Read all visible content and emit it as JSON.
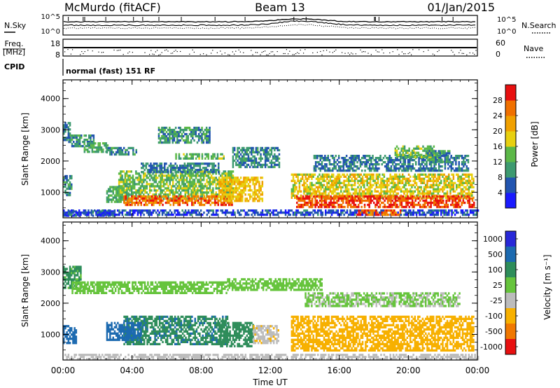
{
  "header": {
    "station": "McMurdo (fitACF)",
    "beam": "Beam 13",
    "date": "01/Jan/2015"
  },
  "top_panel": {
    "left_label": "N.Sky",
    "right_label": "N.Search",
    "left_ticks": [
      "10^5",
      "10^0"
    ],
    "right_ticks": [
      "10^5",
      "10^0"
    ]
  },
  "freq_panel": {
    "left_label_line1": "Freq.",
    "left_label_line2": "[MHz]",
    "left_ticks": [
      "18",
      "8"
    ],
    "right_ticks": [
      "60",
      "0"
    ],
    "right_label": "Nave"
  },
  "cpid": {
    "label": "CPID",
    "value": "normal (fast) 151 RF"
  },
  "colors": {
    "frame": "#000000",
    "power_scale": [
      "#1a1aff",
      "#2255b0",
      "#3d9a70",
      "#5cb848",
      "#e8d010",
      "#f0a000",
      "#f07000",
      "#e81010"
    ],
    "velocity_scale": [
      "#2828d8",
      "#1c6ab0",
      "#2e8d5a",
      "#66c43c",
      "#bcbcbc",
      "#f7b000",
      "#f07800",
      "#e81010"
    ]
  },
  "chart_data": [
    {
      "type": "heatmap",
      "name": "power",
      "ylabel": "Slant Range [km]",
      "xlabel": "",
      "x_ticks": [
        "00:00",
        "04:00",
        "08:00",
        "12:00",
        "16:00",
        "20:00",
        "00:00"
      ],
      "y_ticks": [
        "1000",
        "2000",
        "3000",
        "4000"
      ],
      "ylim": [
        180,
        4600
      ],
      "xlim_hours": [
        0,
        24
      ],
      "colorbar": {
        "title": "Power [dB]",
        "tick_labels": [
          "4",
          "8",
          "12",
          "16",
          "20",
          "24",
          "28"
        ],
        "range": [
          0,
          32
        ]
      },
      "regions": [
        {
          "t0": 0.0,
          "t1": 0.4,
          "r0": 2700,
          "r1": 3250,
          "value": 8
        },
        {
          "t0": 0.3,
          "t1": 1.8,
          "r0": 2450,
          "r1": 2850,
          "value": 10
        },
        {
          "t0": 1.2,
          "t1": 2.6,
          "r0": 2300,
          "r1": 2600,
          "value": 12
        },
        {
          "t0": 2.5,
          "t1": 4.2,
          "r0": 2200,
          "r1": 2450,
          "value": 9
        },
        {
          "t0": 0.0,
          "t1": 0.5,
          "r0": 900,
          "r1": 1550,
          "value": 9
        },
        {
          "t0": 0.0,
          "t1": 3.0,
          "r0": 250,
          "r1": 420,
          "value": 6
        },
        {
          "t0": 2.5,
          "t1": 4.0,
          "r0": 700,
          "r1": 1200,
          "value": 12
        },
        {
          "t0": 3.2,
          "t1": 9.8,
          "r0": 800,
          "r1": 1700,
          "value": 14
        },
        {
          "t0": 3.5,
          "t1": 9.8,
          "r0": 600,
          "r1": 900,
          "value": 26
        },
        {
          "t0": 4.5,
          "t1": 9.0,
          "r0": 1650,
          "r1": 1950,
          "value": 8
        },
        {
          "t0": 6.5,
          "t1": 9.3,
          "r0": 2050,
          "r1": 2250,
          "value": 13
        },
        {
          "t0": 5.5,
          "t1": 8.5,
          "r0": 2600,
          "r1": 3100,
          "value": 10
        },
        {
          "t0": 9.8,
          "t1": 12.5,
          "r0": 1800,
          "r1": 2450,
          "value": 9
        },
        {
          "t0": 9.0,
          "t1": 11.5,
          "r0": 700,
          "r1": 1500,
          "value": 20
        },
        {
          "t0": 0.0,
          "t1": 24.0,
          "r0": 250,
          "r1": 450,
          "value": 5
        },
        {
          "t0": 13.2,
          "t1": 23.8,
          "r0": 800,
          "r1": 1600,
          "value": 18
        },
        {
          "t0": 13.5,
          "t1": 23.8,
          "r0": 550,
          "r1": 900,
          "value": 28
        },
        {
          "t0": 17.0,
          "t1": 19.5,
          "r0": 300,
          "r1": 450,
          "value": 27
        },
        {
          "t0": 14.5,
          "t1": 23.5,
          "r0": 1700,
          "r1": 2200,
          "value": 8
        },
        {
          "t0": 19.2,
          "t1": 21.5,
          "r0": 2100,
          "r1": 2500,
          "value": 14
        },
        {
          "t0": 21.0,
          "t1": 22.5,
          "r0": 2000,
          "r1": 2350,
          "value": 10
        }
      ]
    },
    {
      "type": "heatmap",
      "name": "velocity",
      "ylabel": "Slant Range [km]",
      "xlabel": "Time UT",
      "x_ticks": [
        "00:00",
        "04:00",
        "08:00",
        "12:00",
        "16:00",
        "20:00",
        "00:00"
      ],
      "y_ticks": [
        "1000",
        "2000",
        "3000",
        "4000"
      ],
      "ylim": [
        180,
        4600
      ],
      "xlim_hours": [
        0,
        24
      ],
      "colorbar": {
        "title": "Velocity [m s⁻¹]",
        "tick_labels": [
          "1000",
          "500",
          "100",
          "25",
          "-25",
          "-100",
          "-500",
          "-1000"
        ],
        "range": [
          -1000,
          1000
        ]
      },
      "regions": [
        {
          "t0": 0.0,
          "t1": 1.0,
          "r0": 2500,
          "r1": 3200,
          "value": 40
        },
        {
          "t0": 0.5,
          "t1": 9.5,
          "r0": 2300,
          "r1": 2700,
          "value": 0
        },
        {
          "t0": 9.5,
          "t1": 15.0,
          "r0": 2400,
          "r1": 2800,
          "value": 0
        },
        {
          "t0": 14.0,
          "t1": 23.0,
          "r0": 1900,
          "r1": 2350,
          "value": -20
        },
        {
          "t0": 3.5,
          "t1": 9.5,
          "r0": 700,
          "r1": 1600,
          "value": 80
        },
        {
          "t0": 2.5,
          "t1": 4.5,
          "r0": 800,
          "r1": 1400,
          "value": 250
        },
        {
          "t0": 9.0,
          "t1": 11.0,
          "r0": 600,
          "r1": 1400,
          "value": 50
        },
        {
          "t0": 11.0,
          "t1": 12.5,
          "r0": 700,
          "r1": 1300,
          "value": -80
        },
        {
          "t0": 13.2,
          "t1": 23.8,
          "r0": 500,
          "r1": 1600,
          "value": -300
        },
        {
          "t0": 0.0,
          "t1": 24.0,
          "r0": 220,
          "r1": 380,
          "value": -60
        },
        {
          "t0": 0.0,
          "t1": 0.8,
          "r0": 700,
          "r1": 1300,
          "value": 300
        }
      ]
    }
  ]
}
